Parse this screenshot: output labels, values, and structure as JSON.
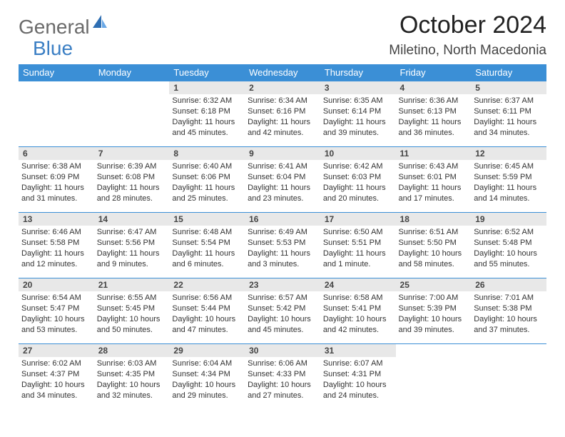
{
  "logo": {
    "part1": "General",
    "part2": "Blue"
  },
  "title": "October 2024",
  "location": "Miletino, North Macedonia",
  "day_headers": [
    "Sunday",
    "Monday",
    "Tuesday",
    "Wednesday",
    "Thursday",
    "Friday",
    "Saturday"
  ],
  "colors": {
    "header_bg": "#3b8fd6",
    "logo_gray": "#6a6a6a",
    "logo_blue": "#3b7fc4",
    "daynum_bg": "#e8e8e8"
  },
  "weeks": [
    [
      null,
      null,
      {
        "n": "1",
        "sr": "Sunrise: 6:32 AM",
        "ss": "Sunset: 6:18 PM",
        "dl": "Daylight: 11 hours and 45 minutes."
      },
      {
        "n": "2",
        "sr": "Sunrise: 6:34 AM",
        "ss": "Sunset: 6:16 PM",
        "dl": "Daylight: 11 hours and 42 minutes."
      },
      {
        "n": "3",
        "sr": "Sunrise: 6:35 AM",
        "ss": "Sunset: 6:14 PM",
        "dl": "Daylight: 11 hours and 39 minutes."
      },
      {
        "n": "4",
        "sr": "Sunrise: 6:36 AM",
        "ss": "Sunset: 6:13 PM",
        "dl": "Daylight: 11 hours and 36 minutes."
      },
      {
        "n": "5",
        "sr": "Sunrise: 6:37 AM",
        "ss": "Sunset: 6:11 PM",
        "dl": "Daylight: 11 hours and 34 minutes."
      }
    ],
    [
      {
        "n": "6",
        "sr": "Sunrise: 6:38 AM",
        "ss": "Sunset: 6:09 PM",
        "dl": "Daylight: 11 hours and 31 minutes."
      },
      {
        "n": "7",
        "sr": "Sunrise: 6:39 AM",
        "ss": "Sunset: 6:08 PM",
        "dl": "Daylight: 11 hours and 28 minutes."
      },
      {
        "n": "8",
        "sr": "Sunrise: 6:40 AM",
        "ss": "Sunset: 6:06 PM",
        "dl": "Daylight: 11 hours and 25 minutes."
      },
      {
        "n": "9",
        "sr": "Sunrise: 6:41 AM",
        "ss": "Sunset: 6:04 PM",
        "dl": "Daylight: 11 hours and 23 minutes."
      },
      {
        "n": "10",
        "sr": "Sunrise: 6:42 AM",
        "ss": "Sunset: 6:03 PM",
        "dl": "Daylight: 11 hours and 20 minutes."
      },
      {
        "n": "11",
        "sr": "Sunrise: 6:43 AM",
        "ss": "Sunset: 6:01 PM",
        "dl": "Daylight: 11 hours and 17 minutes."
      },
      {
        "n": "12",
        "sr": "Sunrise: 6:45 AM",
        "ss": "Sunset: 5:59 PM",
        "dl": "Daylight: 11 hours and 14 minutes."
      }
    ],
    [
      {
        "n": "13",
        "sr": "Sunrise: 6:46 AM",
        "ss": "Sunset: 5:58 PM",
        "dl": "Daylight: 11 hours and 12 minutes."
      },
      {
        "n": "14",
        "sr": "Sunrise: 6:47 AM",
        "ss": "Sunset: 5:56 PM",
        "dl": "Daylight: 11 hours and 9 minutes."
      },
      {
        "n": "15",
        "sr": "Sunrise: 6:48 AM",
        "ss": "Sunset: 5:54 PM",
        "dl": "Daylight: 11 hours and 6 minutes."
      },
      {
        "n": "16",
        "sr": "Sunrise: 6:49 AM",
        "ss": "Sunset: 5:53 PM",
        "dl": "Daylight: 11 hours and 3 minutes."
      },
      {
        "n": "17",
        "sr": "Sunrise: 6:50 AM",
        "ss": "Sunset: 5:51 PM",
        "dl": "Daylight: 11 hours and 1 minute."
      },
      {
        "n": "18",
        "sr": "Sunrise: 6:51 AM",
        "ss": "Sunset: 5:50 PM",
        "dl": "Daylight: 10 hours and 58 minutes."
      },
      {
        "n": "19",
        "sr": "Sunrise: 6:52 AM",
        "ss": "Sunset: 5:48 PM",
        "dl": "Daylight: 10 hours and 55 minutes."
      }
    ],
    [
      {
        "n": "20",
        "sr": "Sunrise: 6:54 AM",
        "ss": "Sunset: 5:47 PM",
        "dl": "Daylight: 10 hours and 53 minutes."
      },
      {
        "n": "21",
        "sr": "Sunrise: 6:55 AM",
        "ss": "Sunset: 5:45 PM",
        "dl": "Daylight: 10 hours and 50 minutes."
      },
      {
        "n": "22",
        "sr": "Sunrise: 6:56 AM",
        "ss": "Sunset: 5:44 PM",
        "dl": "Daylight: 10 hours and 47 minutes."
      },
      {
        "n": "23",
        "sr": "Sunrise: 6:57 AM",
        "ss": "Sunset: 5:42 PM",
        "dl": "Daylight: 10 hours and 45 minutes."
      },
      {
        "n": "24",
        "sr": "Sunrise: 6:58 AM",
        "ss": "Sunset: 5:41 PM",
        "dl": "Daylight: 10 hours and 42 minutes."
      },
      {
        "n": "25",
        "sr": "Sunrise: 7:00 AM",
        "ss": "Sunset: 5:39 PM",
        "dl": "Daylight: 10 hours and 39 minutes."
      },
      {
        "n": "26",
        "sr": "Sunrise: 7:01 AM",
        "ss": "Sunset: 5:38 PM",
        "dl": "Daylight: 10 hours and 37 minutes."
      }
    ],
    [
      {
        "n": "27",
        "sr": "Sunrise: 6:02 AM",
        "ss": "Sunset: 4:37 PM",
        "dl": "Daylight: 10 hours and 34 minutes."
      },
      {
        "n": "28",
        "sr": "Sunrise: 6:03 AM",
        "ss": "Sunset: 4:35 PM",
        "dl": "Daylight: 10 hours and 32 minutes."
      },
      {
        "n": "29",
        "sr": "Sunrise: 6:04 AM",
        "ss": "Sunset: 4:34 PM",
        "dl": "Daylight: 10 hours and 29 minutes."
      },
      {
        "n": "30",
        "sr": "Sunrise: 6:06 AM",
        "ss": "Sunset: 4:33 PM",
        "dl": "Daylight: 10 hours and 27 minutes."
      },
      {
        "n": "31",
        "sr": "Sunrise: 6:07 AM",
        "ss": "Sunset: 4:31 PM",
        "dl": "Daylight: 10 hours and 24 minutes."
      },
      null,
      null
    ]
  ]
}
